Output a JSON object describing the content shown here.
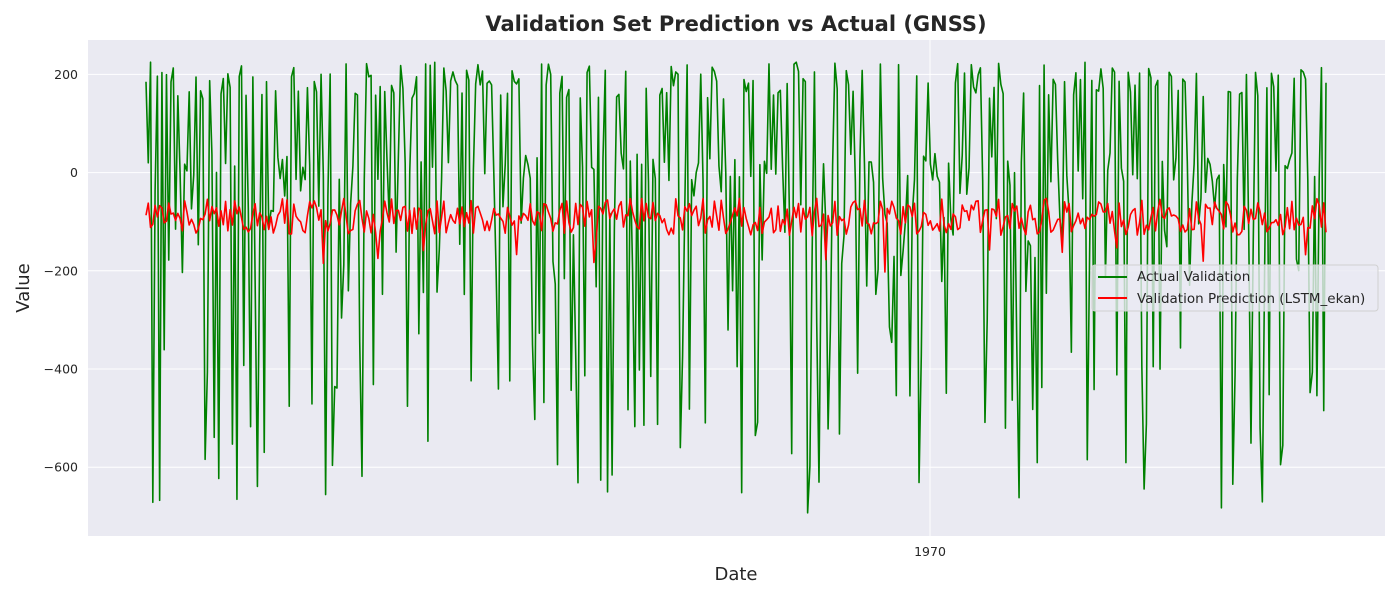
{
  "chart_data": {
    "type": "line",
    "title": "Validation Set Prediction vs Actual (GNSS)",
    "xlabel": "Date",
    "ylabel": "Value",
    "xtick_labels": [
      "1970"
    ],
    "ytick_labels": [
      "200",
      "0",
      "−200",
      "−400",
      "−600"
    ],
    "yticks": [
      200,
      0,
      -200,
      -400,
      -600
    ],
    "ylim": [
      -740,
      270
    ],
    "grid": true,
    "legend_position": "center-right",
    "n_points": 520,
    "series": [
      {
        "name": "Actual Validation",
        "color": "#008000",
        "summary": {
          "min": -695,
          "max": 225,
          "pattern": "noisy oscillation with deep negative spikes"
        }
      },
      {
        "name": "Validation Prediction (LSTM_ekan)",
        "color": "#ff0000",
        "summary": {
          "min": -205,
          "max": -40,
          "mean": -90,
          "pattern": "noisy band around -90"
        }
      }
    ]
  }
}
